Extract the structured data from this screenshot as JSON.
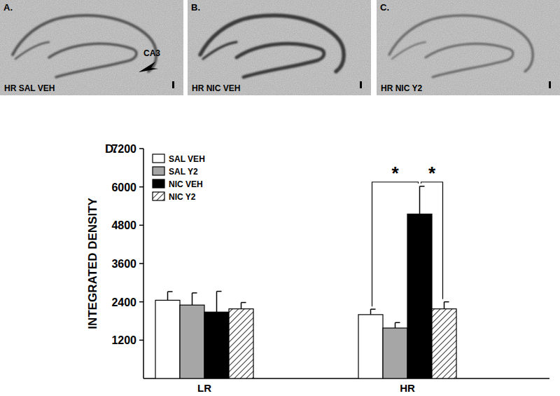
{
  "panels": [
    {
      "letter": "A.",
      "label": "HR SAL VEH",
      "annotation": "CA3"
    },
    {
      "letter": "B.",
      "label": "HR NIC VEH"
    },
    {
      "letter": "C.",
      "label": "HR NIC Y2"
    }
  ],
  "chart_data": {
    "type": "bar",
    "title": "D.",
    "y_label": "INTEGRATED DENSITY",
    "categories": [
      "LR",
      "HR"
    ],
    "series": [
      {
        "name": "SAL VEH",
        "color": "#ffffff",
        "values": [
          2450,
          2000
        ],
        "errors": [
          270,
          170
        ]
      },
      {
        "name": "SAL Y2",
        "color": "#a6a6a6",
        "values": [
          2300,
          1580
        ],
        "errors": [
          380,
          170
        ]
      },
      {
        "name": "NIC VEH",
        "color": "#000000",
        "values": [
          2080,
          5150
        ],
        "errors": [
          650,
          870
        ]
      },
      {
        "name": "NIC Y2",
        "color": "#ffffff",
        "marker": "hatched",
        "values": [
          2180,
          2180
        ],
        "errors": [
          200,
          220
        ]
      }
    ],
    "ylim": [
      0,
      7200
    ],
    "yticks": [
      1200,
      2400,
      3600,
      4800,
      6000,
      7200
    ],
    "legend": "upper left",
    "annotations": [
      {
        "text": "*",
        "category": "HR",
        "between": [
          "SAL VEH",
          "NIC VEH"
        ]
      },
      {
        "text": "*",
        "category": "HR",
        "between": [
          "NIC VEH",
          "NIC Y2"
        ]
      }
    ]
  }
}
